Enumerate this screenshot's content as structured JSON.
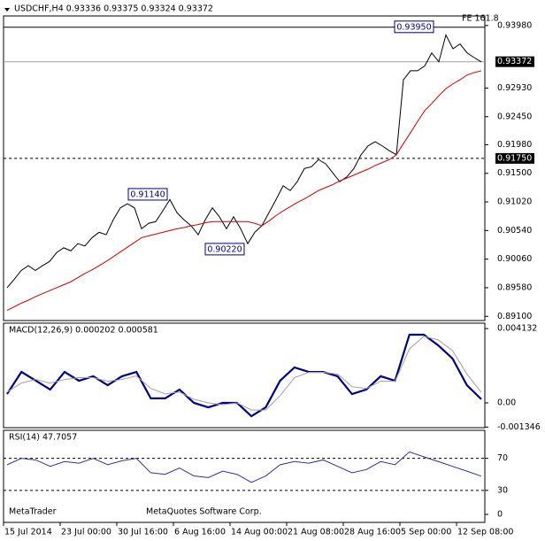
{
  "chart_data": [
    {
      "type": "line",
      "title": "USDCHF,H4  0.93336 0.93375 0.93324 0.93372",
      "ylim": [
        0.8903,
        0.9414
      ],
      "yticks": [
        {
          "value": 0.9398,
          "label": "0.93980"
        },
        {
          "value": 0.9293,
          "label": "0.92930"
        },
        {
          "value": 0.9245,
          "label": "0.92450"
        },
        {
          "value": 0.9198,
          "label": "0.91980"
        },
        {
          "value": 0.915,
          "label": "0.91500"
        },
        {
          "value": 0.9102,
          "label": "0.91020"
        },
        {
          "value": 0.9054,
          "label": "0.90540"
        },
        {
          "value": 0.9006,
          "label": "0.90060"
        },
        {
          "value": 0.8958,
          "label": "0.89580"
        },
        {
          "value": 0.891,
          "label": "0.89100"
        }
      ],
      "levels": [
        {
          "value": 0.93372,
          "label": "0.93372",
          "dashed": false
        },
        {
          "value": 0.9175,
          "label": "0.91750",
          "dashed": true
        }
      ],
      "annotations": [
        {
          "label": "0.93950",
          "value": 0.9395
        },
        {
          "label": "0.91140",
          "value": 0.9114
        },
        {
          "label": "0.90220",
          "value": 0.9022
        }
      ],
      "note": "FE 161.8",
      "series": [
        {
          "color": "#000000",
          "values": [
            0.8958,
            0.8972,
            0.8987,
            0.8995,
            0.8987,
            0.8995,
            0.9002,
            0.9017,
            0.9025,
            0.902,
            0.9032,
            0.9028,
            0.9042,
            0.9051,
            0.9047,
            0.9072,
            0.9092,
            0.9099,
            0.9092,
            0.9057,
            0.9066,
            0.9069,
            0.9087,
            0.9106,
            0.9084,
            0.9072,
            0.9062,
            0.9047,
            0.9072,
            0.9092,
            0.9077,
            0.9057,
            0.9077,
            0.9057,
            0.9032,
            0.9051,
            0.9062,
            0.9084,
            0.9106,
            0.9129,
            0.9121,
            0.9136,
            0.9158,
            0.9161,
            0.9173,
            0.9166,
            0.9151,
            0.9136,
            0.9144,
            0.9158,
            0.9181,
            0.9196,
            0.9203,
            0.9196,
            0.9188,
            0.9181,
            0.9307,
            0.9322,
            0.9322,
            0.933,
            0.9352,
            0.9337,
            0.9382,
            0.9359,
            0.9367,
            0.9352,
            0.9344,
            0.9337
          ]
        },
        {
          "color": "#cc0000",
          "values": [
            0.892,
            0.8926,
            0.8932,
            0.8937,
            0.8943,
            0.8948,
            0.8953,
            0.8958,
            0.8963,
            0.8968,
            0.8975,
            0.8982,
            0.8988,
            0.8995,
            0.9002,
            0.901,
            0.9018,
            0.9026,
            0.9034,
            0.9042,
            0.9045,
            0.9048,
            0.9051,
            0.9054,
            0.9057,
            0.9059,
            0.9062,
            0.9064,
            0.9067,
            0.9069,
            0.9069,
            0.9069,
            0.9069,
            0.9069,
            0.9069,
            0.9066,
            0.9062,
            0.907,
            0.9079,
            0.9087,
            0.9094,
            0.9101,
            0.9107,
            0.9114,
            0.9121,
            0.9126,
            0.9131,
            0.9137,
            0.9142,
            0.9147,
            0.9152,
            0.9157,
            0.9163,
            0.9168,
            0.9173,
            0.9181,
            0.92,
            0.9218,
            0.9237,
            0.9255,
            0.9267,
            0.928,
            0.9292,
            0.93,
            0.9307,
            0.9315,
            0.9319,
            0.9322
          ]
        }
      ]
    },
    {
      "type": "line",
      "title": "MACD(12,26,9) 0.000202 0.000581",
      "ylim": [
        -0.00138,
        0.00443
      ],
      "yticks": [
        0.004132,
        {
          "value": 0,
          "label": "0.00"
        },
        -0.001346
      ],
      "series": [
        {
          "color": "#000080",
          "values": [
            0.00049,
            0.00172,
            0.00123,
            0.00074,
            0.00172,
            0.00123,
            0.00148,
            0.00098,
            0.00148,
            0.00172,
            0.00025,
            0.00025,
            0.00074,
            0,
            -0.00025,
            0,
            0,
            -0.00074,
            -0.00025,
            0.00123,
            0.00197,
            0.00172,
            0.00172,
            0.00148,
            0.00049,
            0.00074,
            0.00148,
            0.00123,
            0.00379,
            0.00379,
            0.0032,
            0.00246,
            0.00098,
            0.000202
          ]
        },
        {
          "color": "#a0a0a0",
          "values": [
            0.0006,
            0.0011,
            0.0013,
            0.0011,
            0.0013,
            0.0014,
            0.0014,
            0.0012,
            0.0013,
            0.0015,
            0.0008,
            0.0005,
            0.0006,
            0.0002,
            0,
            -0.0001,
            0,
            -0.0004,
            -0.0004,
            0.0004,
            0.0014,
            0.0017,
            0.0017,
            0.0016,
            0.0009,
            0.0008,
            0.0012,
            0.0012,
            0.003,
            0.0037,
            0.0035,
            0.0029,
            0.0016,
            0.000581
          ]
        }
      ]
    },
    {
      "type": "line",
      "title": "RSI(14) 47.7057",
      "ylim": [
        -10,
        105
      ],
      "yticks": [
        70,
        30,
        0
      ],
      "levels": [
        {
          "value": 70,
          "dashed": true
        },
        {
          "value": 30,
          "dashed": true
        }
      ],
      "series": [
        {
          "color": "#3030a0",
          "values": [
            62,
            70,
            68,
            60,
            66,
            64,
            70,
            62,
            67,
            70,
            52,
            50,
            58,
            48,
            46,
            54,
            50,
            40,
            48,
            62,
            66,
            64,
            68,
            60,
            52,
            56,
            66,
            62,
            78,
            72,
            66,
            60,
            54,
            47.7057
          ]
        }
      ]
    }
  ],
  "time_axis": [
    "15 Jul 2014",
    "23 Jul 00:00",
    "30 Jul 16:00",
    "6 Aug 16:00",
    "14 Aug 00:00",
    "21 Aug 08:00",
    "28 Aug 16:00",
    "5 Sep 00:00",
    "12 Sep 08:00"
  ],
  "footer": [
    "MetaTrader",
    "MetaQuotes Software Corp."
  ]
}
